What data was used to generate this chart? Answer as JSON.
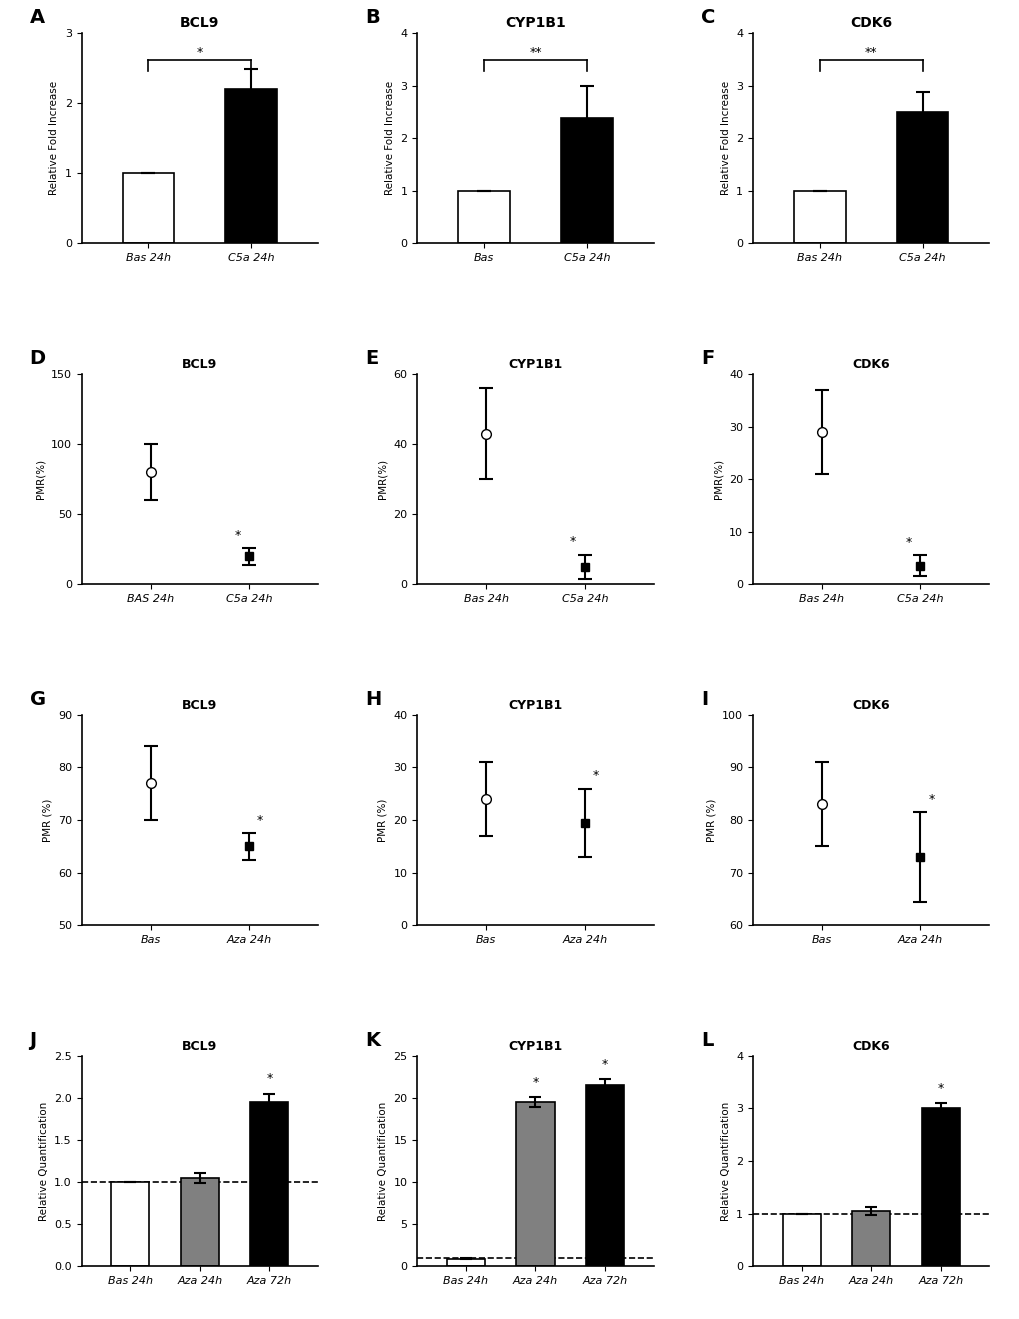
{
  "panel_labels": [
    "A",
    "B",
    "C",
    "D",
    "E",
    "F",
    "G",
    "H",
    "I",
    "J",
    "K",
    "L"
  ],
  "row1": {
    "titles": [
      "BCL9",
      "CYP1B1",
      "CDK6"
    ],
    "ylabel": "Relative Fold Increase",
    "A": {
      "categories": [
        "Bas 24h",
        "C5a 24h"
      ],
      "values": [
        1.0,
        2.2
      ],
      "errors": [
        0.0,
        0.28
      ],
      "colors": [
        "white",
        "black"
      ],
      "ylim": [
        0,
        3
      ],
      "yticks": [
        0,
        1,
        2,
        3
      ],
      "sig": "*"
    },
    "B": {
      "categories": [
        "Bas",
        "C5a 24h"
      ],
      "values": [
        1.0,
        2.38
      ],
      "errors": [
        0.0,
        0.62
      ],
      "colors": [
        "white",
        "black"
      ],
      "ylim": [
        0,
        4
      ],
      "yticks": [
        0,
        1,
        2,
        3,
        4
      ],
      "sig": "**"
    },
    "C": {
      "categories": [
        "Bas 24h",
        "C5a 24h"
      ],
      "values": [
        1.0,
        2.5
      ],
      "errors": [
        0.0,
        0.38
      ],
      "colors": [
        "white",
        "black"
      ],
      "ylim": [
        0,
        4
      ],
      "yticks": [
        0,
        1,
        2,
        3,
        4
      ],
      "sig": "**"
    }
  },
  "row2": {
    "titles": [
      "BCL9",
      "CYP1B1",
      "CDK6"
    ],
    "ylabel": "PMR(%)",
    "D": {
      "categories": [
        "BAS 24h",
        "C5a 24h"
      ],
      "values": [
        80.0,
        20.0
      ],
      "errors": [
        20.0,
        6.0
      ],
      "ylim": [
        0,
        150
      ],
      "yticks": [
        0,
        50,
        100,
        150
      ],
      "sig": "*"
    },
    "E": {
      "categories": [
        "Bas 24h",
        "C5a 24h"
      ],
      "values": [
        43.0,
        5.0
      ],
      "errors": [
        13.0,
        3.5
      ],
      "ylim": [
        0,
        60
      ],
      "yticks": [
        0,
        20,
        40,
        60
      ],
      "sig": "*"
    },
    "F": {
      "categories": [
        "Bas 24h",
        "C5a 24h"
      ],
      "values": [
        29.0,
        3.5
      ],
      "errors": [
        8.0,
        2.0
      ],
      "ylim": [
        0,
        40
      ],
      "yticks": [
        0,
        10,
        20,
        30,
        40
      ],
      "sig": "*"
    }
  },
  "row3": {
    "titles": [
      "BCL9",
      "CYP1B1",
      "CDK6"
    ],
    "ylabel": "PMR (%)",
    "G": {
      "categories": [
        "Bas",
        "Aza 24h"
      ],
      "values": [
        77.0,
        65.0
      ],
      "errors": [
        7.0,
        2.5
      ],
      "ylim": [
        50,
        90
      ],
      "yticks": [
        50,
        60,
        70,
        80,
        90
      ],
      "sig": "*"
    },
    "H": {
      "categories": [
        "Bas",
        "Aza 24h"
      ],
      "values": [
        24.0,
        19.5
      ],
      "errors": [
        7.0,
        6.5
      ],
      "ylim": [
        0,
        40
      ],
      "yticks": [
        0,
        10,
        20,
        30,
        40
      ],
      "sig": "*"
    },
    "I": {
      "categories": [
        "Bas",
        "Aza 24h"
      ],
      "values": [
        83.0,
        73.0
      ],
      "errors": [
        8.0,
        8.5
      ],
      "ylim": [
        60,
        100
      ],
      "yticks": [
        60,
        70,
        80,
        90,
        100
      ],
      "sig": "*"
    }
  },
  "row4": {
    "titles": [
      "BCL9",
      "CYP1B1",
      "CDK6"
    ],
    "ylabel": "Relative Quantification",
    "J": {
      "categories": [
        "Bas 24h",
        "Aza 24h",
        "Aza 72h"
      ],
      "values": [
        1.0,
        1.05,
        1.95
      ],
      "errors": [
        0.0,
        0.06,
        0.1
      ],
      "colors": [
        "white",
        "#808080",
        "black"
      ],
      "ylim": [
        0.0,
        2.5
      ],
      "yticks": [
        0.0,
        0.5,
        1.0,
        1.5,
        2.0,
        2.5
      ],
      "sig_bars": [
        2
      ],
      "sig_texts": [
        "*"
      ],
      "dashed_ref": 1.0
    },
    "K": {
      "categories": [
        "Bas 24h",
        "Aza 24h",
        "Aza 72h"
      ],
      "values": [
        0.9,
        19.5,
        21.5
      ],
      "errors": [
        0.05,
        0.6,
        0.7
      ],
      "colors": [
        "white",
        "#808080",
        "black"
      ],
      "ylim": [
        0,
        25
      ],
      "yticks": [
        0,
        5,
        10,
        15,
        20,
        25
      ],
      "sig_bars": [
        1,
        2
      ],
      "sig_texts": [
        "*",
        "*"
      ],
      "dashed_ref": 1.0
    },
    "L": {
      "categories": [
        "Bas 24h",
        "Aza 24h",
        "Aza 72h"
      ],
      "values": [
        1.0,
        1.05,
        3.0
      ],
      "errors": [
        0.0,
        0.08,
        0.1
      ],
      "colors": [
        "white",
        "#808080",
        "black"
      ],
      "ylim": [
        0,
        4
      ],
      "yticks": [
        0,
        1,
        2,
        3,
        4
      ],
      "sig_bars": [
        2
      ],
      "sig_texts": [
        "*"
      ],
      "dashed_ref": 1.0
    }
  },
  "bg_color": "#ffffff",
  "bar_edge_color": "#000000"
}
